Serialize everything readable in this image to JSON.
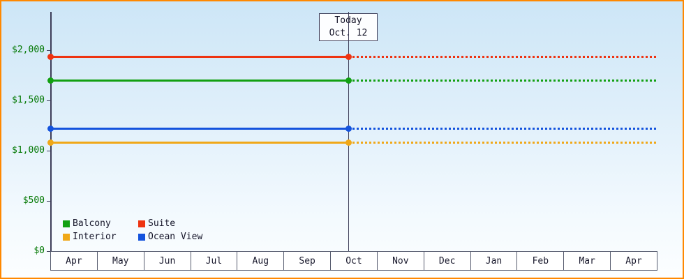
{
  "chart_data": {
    "type": "line",
    "title": "",
    "xlabel": "",
    "ylabel": "",
    "ylim": [
      0,
      2000
    ],
    "grid": false,
    "x_categories": [
      "Apr",
      "May",
      "Jun",
      "Jul",
      "Aug",
      "Sep",
      "Oct",
      "Nov",
      "Dec",
      "Jan",
      "Feb",
      "Mar",
      "Apr"
    ],
    "y_ticks": [
      {
        "label": "$0",
        "value": 0
      },
      {
        "label": "$500",
        "value": 500
      },
      {
        "label": "$1,000",
        "value": 1000
      },
      {
        "label": "$1,500",
        "value": 1500
      },
      {
        "label": "$2,000",
        "value": 2000
      }
    ],
    "today": {
      "label_line1": "Today",
      "label_line2": "Oct. 12",
      "month_index": 6,
      "day_fraction": 0.387
    },
    "series": [
      {
        "name": "Suite",
        "color": "#ee3311",
        "value": 1940,
        "style": "solid-then-dotted"
      },
      {
        "name": "Balcony",
        "color": "#12a012",
        "value": 1700,
        "style": "solid-then-dotted"
      },
      {
        "name": "Ocean View",
        "color": "#1453dd",
        "value": 1225,
        "style": "solid-then-dotted"
      },
      {
        "name": "Interior",
        "color": "#f0a818",
        "value": 1080,
        "style": "solid-then-dotted"
      }
    ],
    "legend": {
      "position": "bottom-left",
      "items": [
        "Balcony",
        "Suite",
        "Interior",
        "Ocean View"
      ]
    }
  },
  "colors": {
    "frame_border": "#ff8800",
    "axis_label": "#007700",
    "axis_line": "#3d3d58",
    "cell_border": "#565b6e",
    "text": "#16162a",
    "today_box_bg": "#fdfeff",
    "month_cell_bg": "#ffffff"
  }
}
